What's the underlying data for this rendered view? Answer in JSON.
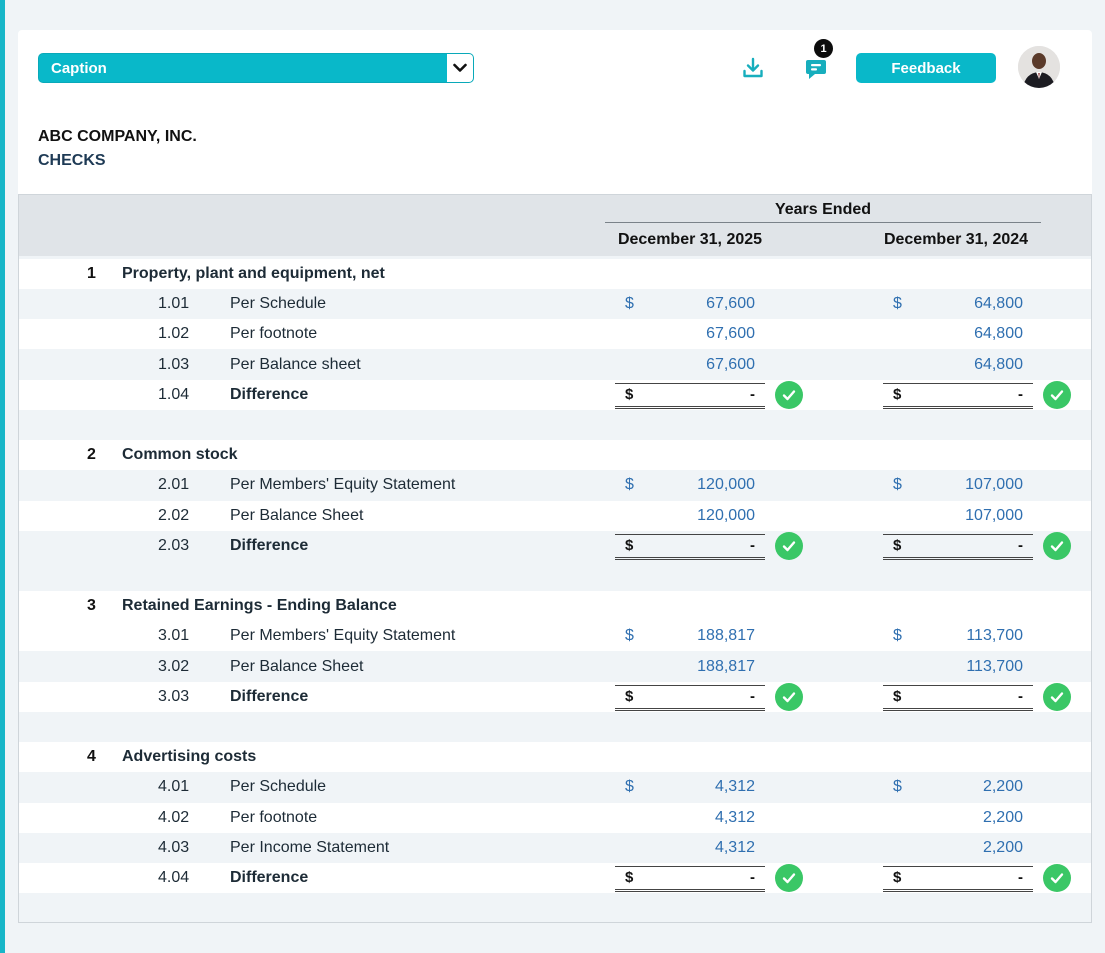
{
  "toolbar": {
    "caption_label": "Caption",
    "feedback_label": "Feedback",
    "comments_count": "1",
    "accent_color": "#09b8c9"
  },
  "header": {
    "company": "ABC COMPANY, INC.",
    "subtitle": "CHECKS"
  },
  "table": {
    "years_ended": "Years Ended",
    "col_2025": "December 31, 2025",
    "col_2024": "December 31, 2024",
    "currency": "$",
    "sections": [
      {
        "num": "1",
        "title": "Property, plant and equipment, net",
        "items": [
          {
            "num": "1.01",
            "label": "Per Schedule",
            "v2025": "67,600",
            "v2024": "64,800",
            "show_dollar": true
          },
          {
            "num": "1.02",
            "label": "Per footnote",
            "v2025": "67,600",
            "v2024": "64,800",
            "show_dollar": false
          },
          {
            "num": "1.03",
            "label": "Per Balance sheet",
            "v2025": "67,600",
            "v2024": "64,800",
            "show_dollar": false
          }
        ],
        "difference": {
          "num": "1.04",
          "label": "Difference",
          "v2025": "-",
          "v2024": "-"
        }
      },
      {
        "num": "2",
        "title": "Common stock",
        "items": [
          {
            "num": "2.01",
            "label": "Per Members' Equity Statement",
            "v2025": "120,000",
            "v2024": "107,000",
            "show_dollar": true
          },
          {
            "num": "2.02",
            "label": "Per Balance Sheet",
            "v2025": "120,000",
            "v2024": "107,000",
            "show_dollar": false
          }
        ],
        "difference": {
          "num": "2.03",
          "label": "Difference",
          "v2025": "-",
          "v2024": "-"
        }
      },
      {
        "num": "3",
        "title": "Retained Earnings - Ending Balance",
        "items": [
          {
            "num": "3.01",
            "label": "Per Members' Equity Statement",
            "v2025": "188,817",
            "v2024": "113,700",
            "show_dollar": true
          },
          {
            "num": "3.02",
            "label": "Per Balance Sheet",
            "v2025": "188,817",
            "v2024": "113,700",
            "show_dollar": false
          }
        ],
        "difference": {
          "num": "3.03",
          "label": "Difference",
          "v2025": "-",
          "v2024": "-"
        }
      },
      {
        "num": "4",
        "title": "Advertising costs",
        "items": [
          {
            "num": "4.01",
            "label": "Per Schedule",
            "v2025": "4,312",
            "v2024": "2,200",
            "show_dollar": true
          },
          {
            "num": "4.02",
            "label": "Per footnote",
            "v2025": "4,312",
            "v2024": "2,200",
            "show_dollar": false
          },
          {
            "num": "4.03",
            "label": "Per Income Statement",
            "v2025": "4,312",
            "v2024": "2,200",
            "show_dollar": false
          }
        ],
        "difference": {
          "num": "4.04",
          "label": "Difference",
          "v2025": "-",
          "v2024": "-"
        }
      }
    ]
  },
  "icons": {
    "download": "download-icon",
    "comments": "comment-icon",
    "check": "check-circle-icon",
    "chevron": "chevron-down-icon"
  },
  "colors": {
    "value_blue": "#2f6fb0",
    "check_green": "#3ac766",
    "header_grey": "#e0e4e8"
  }
}
